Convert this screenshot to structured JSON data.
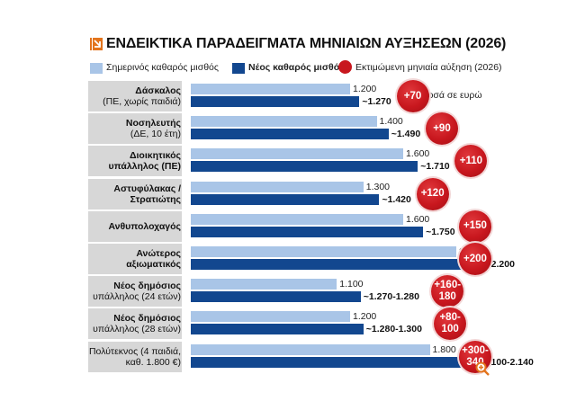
{
  "header": {
    "title": "ΕΝΔΕΙΚΤΙΚΑ ΠΑΡΑΔΕΙΓΜΑΤΑ ΜΗΝΙΑΙΩΝ ΑΥΞΗΣΕΩΝ (2026)",
    "logo_icon": "logo-icon"
  },
  "legend": {
    "current": "Σημερινός καθαρός μισθός",
    "new": "Νέος καθαρός μισθός",
    "increase": "Εκτιμώμενη μηνιαία αύξηση (2026)"
  },
  "unit_note": "Ποσά σε ευρώ",
  "colors": {
    "current": "#a9c5e7",
    "new": "#12478f",
    "increase": "#c8171e",
    "label_bg": "#d7d7d7"
  },
  "chart_data": {
    "type": "bar",
    "orientation": "horizontal",
    "title": "ΕΝΔΕΙΚΤΙΚΑ ΠΑΡΑΔΕΙΓΜΑΤΑ ΜΗΝΙΑΙΩΝ ΑΥΞΗΣΕΩΝ (2026)",
    "xlim": [
      0,
      2300
    ],
    "grid": false,
    "legend_position": "top",
    "categories": [
      {
        "label_lines": [
          [
            "Δάσκαλος",
            true
          ],
          [
            "(ΠΕ, χωρίς παιδιά)",
            false
          ]
        ]
      },
      {
        "label_lines": [
          [
            "Νοσηλευτής",
            true
          ],
          [
            "(ΔΕ, 10 έτη)",
            false
          ]
        ]
      },
      {
        "label_lines": [
          [
            "Διοικητικός",
            true
          ],
          [
            "υπάλληλος (ΠΕ)",
            true
          ]
        ]
      },
      {
        "label_lines": [
          [
            "Αστυφύλακας /",
            true
          ],
          [
            "Στρατιώτης",
            true
          ]
        ]
      },
      {
        "label_lines": [
          [
            "Ανθυπολοχαγός",
            true
          ]
        ]
      },
      {
        "label_lines": [
          [
            "Ανώτερος",
            true
          ],
          [
            "αξιωματικός",
            true
          ]
        ]
      },
      {
        "label_lines": [
          [
            "Νέος δημόσιος",
            true
          ],
          [
            "υπάλληλος (24 ετών)",
            false
          ]
        ]
      },
      {
        "label_lines": [
          [
            "Νέος δημόσιος",
            true
          ],
          [
            "υπάλληλος (28 ετών)",
            false
          ]
        ]
      },
      {
        "label_lines": [
          [
            "Πολύτεκνος (4 παιδιά,",
            false
          ],
          [
            "καθ. 1.800 €)",
            false
          ]
        ]
      }
    ],
    "series": [
      {
        "name": "Σημερινός καθαρός μισθός",
        "values": [
          1200,
          1400,
          1600,
          1300,
          1600,
          2000,
          1100,
          1200,
          1800
        ],
        "labels": [
          "1.200",
          "1.400",
          "1.600",
          "1.300",
          "1.600",
          "2.000",
          "1.100",
          "1.200",
          "1.800"
        ]
      },
      {
        "name": "Νέος καθαρός μισθός",
        "values": [
          1270,
          1490,
          1710,
          1420,
          1750,
          2200,
          1280,
          1300,
          2140
        ],
        "labels": [
          "~1.270",
          "~1.490",
          "~1.710",
          "~1.420",
          "~1.750",
          "~2.200",
          "~1.270-1.280",
          "~1.280-1.300",
          "~2.100-2.140"
        ]
      }
    ],
    "increases": [
      [
        "+70"
      ],
      [
        "+90"
      ],
      [
        "+110"
      ],
      [
        "+120"
      ],
      [
        "+150"
      ],
      [
        "+200"
      ],
      [
        "+160-",
        "180"
      ],
      [
        "+80-",
        "100"
      ],
      [
        "+300-",
        "340"
      ]
    ]
  },
  "icons": {
    "zoom": "zoom-icon"
  }
}
